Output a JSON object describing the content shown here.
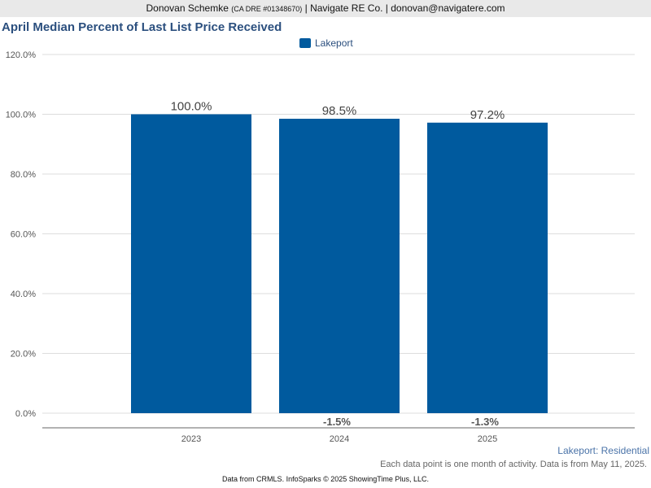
{
  "header": {
    "agent_name": "Donovan Schemke",
    "license": "(CA DRE #01348670)",
    "company_email": "| Navigate RE Co. | donovan@navigatere.com"
  },
  "chart_data": {
    "type": "bar",
    "title": "April Median Percent of Last List Price Received",
    "categories": [
      "2023",
      "2024",
      "2025"
    ],
    "series": [
      {
        "name": "Lakeport",
        "values": [
          100.0,
          98.5,
          97.2
        ],
        "color": "#005a9e"
      }
    ],
    "data_labels": [
      "100.0%",
      "98.5%",
      "97.2%"
    ],
    "change_labels": [
      "",
      "-1.5%",
      "-1.3%"
    ],
    "ylim": [
      0,
      120
    ],
    "yticks": [
      0,
      20,
      40,
      60,
      80,
      100,
      120
    ],
    "ytick_labels": [
      "0.0%",
      "20.0%",
      "40.0%",
      "60.0%",
      "80.0%",
      "100.0%",
      "120.0%"
    ],
    "grid": true,
    "legend_position": "top-center"
  },
  "sublabel": "Lakeport: Residential",
  "note": "Each data point is one month of activity. Data is from May 11, 2025.",
  "footer": "Data from CRMLS. InfoSparks © 2025 ShowingTime Plus, LLC."
}
